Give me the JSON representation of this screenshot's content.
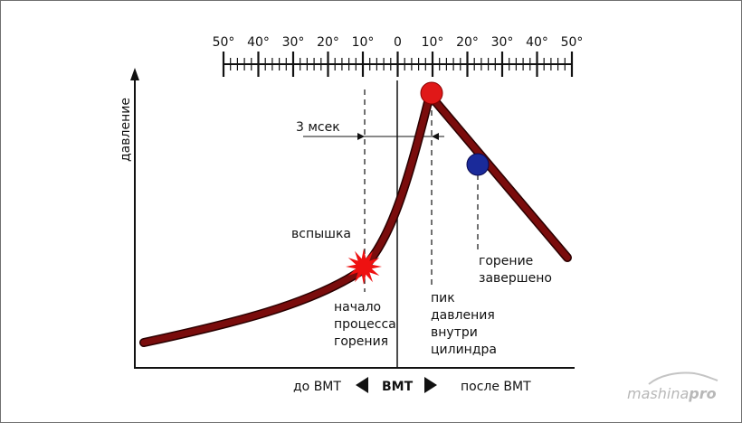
{
  "scale": {
    "labels": [
      "50°",
      "40°",
      "30°",
      "20°",
      "10°",
      "0",
      "10°",
      "20°",
      "30°",
      "40°",
      "50°"
    ]
  },
  "axis": {
    "ylabel": "давление"
  },
  "annotations": {
    "duration": "3 мсек",
    "flash": "вспышка",
    "combustion_start": [
      "начало",
      "процесса",
      "горения"
    ],
    "pressure_peak": [
      "пик",
      "давления",
      "внутри",
      "цилиндра"
    ],
    "combustion_end": [
      "горение",
      "завершено"
    ]
  },
  "bottom": {
    "before": "до ВМТ",
    "tdc": "ВМТ",
    "after": "после ВМТ"
  },
  "watermark": {
    "part1": "mashina",
    "part2": "pro"
  },
  "colors": {
    "curve_fill": "#7a0c0c",
    "curve_outline": "#2a0000",
    "peak_dot": "#e01818",
    "end_dot": "#1a2a9a",
    "flash": "#ee1111"
  }
}
